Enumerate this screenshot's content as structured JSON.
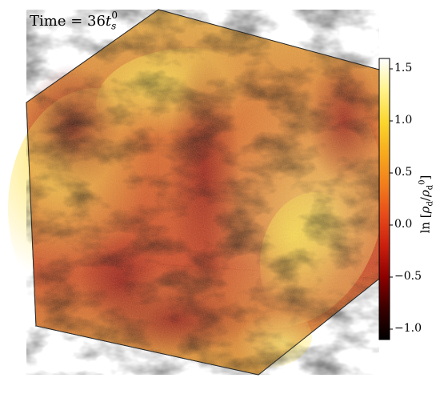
{
  "title": {
    "prefix": "Time = 36",
    "symbol": "t",
    "subscript": "s",
    "superscript": "0"
  },
  "colorbar": {
    "label_prefix": "ln [",
    "label_num": "ρ",
    "label_num_sub": "d",
    "label_slash": "/",
    "label_den": "ρ",
    "label_den_sub": "d",
    "label_den_sup": "0",
    "label_suffix": "]",
    "ticks": [
      "1.5",
      "1.0",
      "0.5",
      "0.0",
      "−0.5",
      "−1.0"
    ],
    "tick_values": [
      1.5,
      1.0,
      0.5,
      0.0,
      -0.5,
      -1.0
    ],
    "range": [
      -1.1,
      1.6
    ],
    "colormap": [
      "#000000",
      "#3a0000",
      "#8b0000",
      "#c81e0e",
      "#e64a1a",
      "#f27d1c",
      "#f7a91e",
      "#fbd52c",
      "#fff38c",
      "#ffffff"
    ]
  },
  "colors": {
    "box_face": "#7d7d7d",
    "box_edge": "#2b2b2b"
  }
}
